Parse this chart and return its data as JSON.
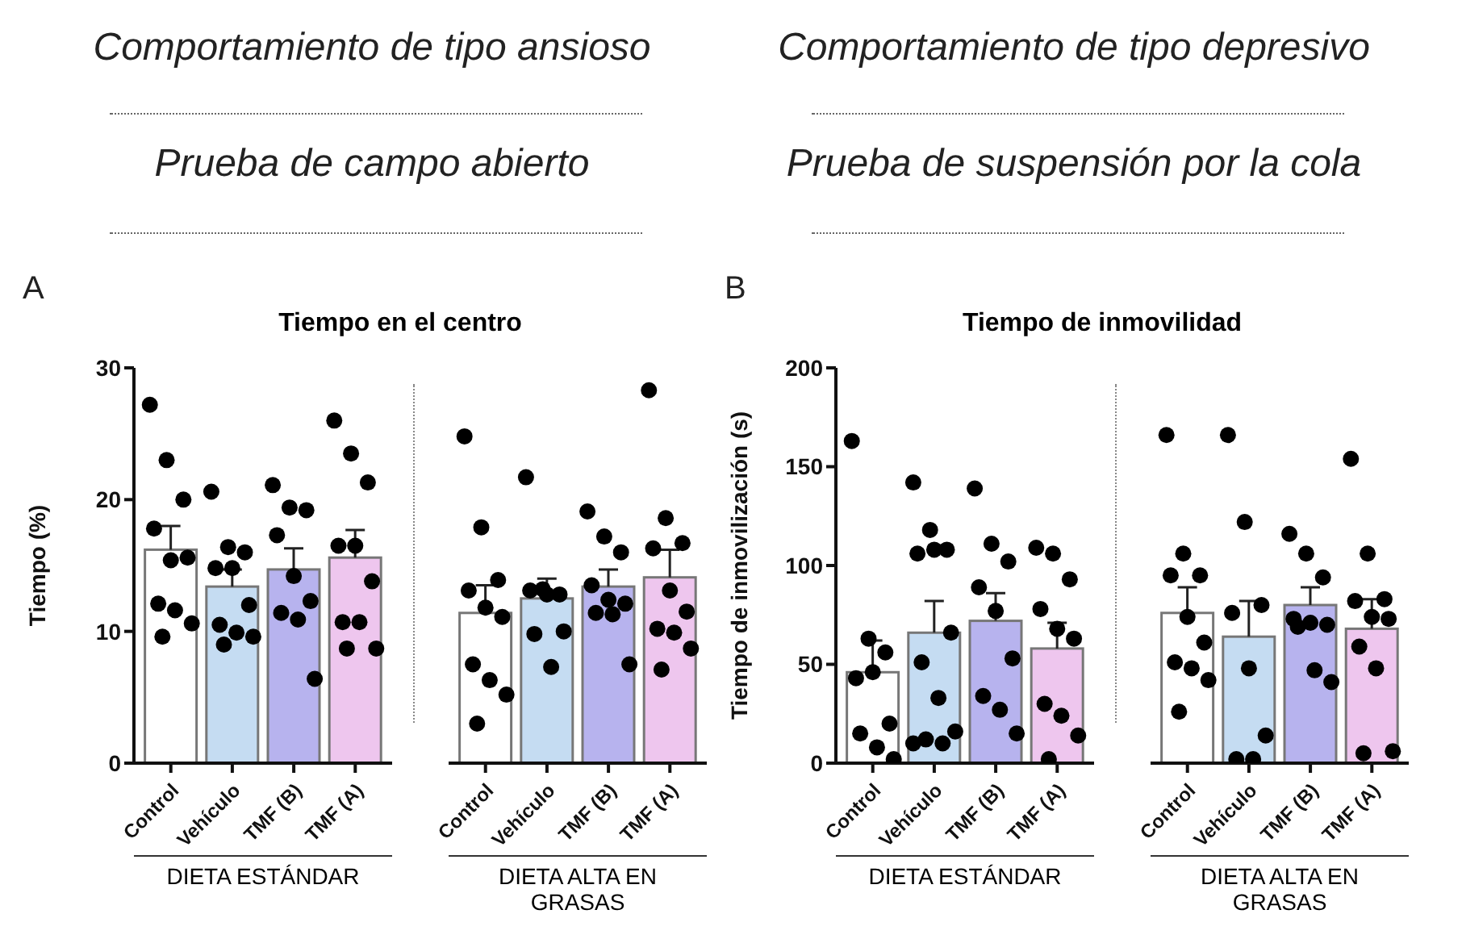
{
  "chart_data": [
    {
      "type": "bar",
      "title": "Tiempo en el centro",
      "ylabel": "Tiempo (%)",
      "xlabel": "DIETA ESTÁNDAR",
      "categories": [
        "Control",
        "Vehículo",
        "TMF (B)",
        "TMF (A)"
      ],
      "ylim": [
        0,
        30
      ],
      "yticks": [
        0,
        10,
        20,
        30
      ],
      "annotations": [
        "Comportamiento de tipo ansioso",
        "Prueba de campo abierto",
        "A"
      ],
      "series": [
        {
          "values": [
            16.2,
            13.4,
            14.7,
            15.6
          ],
          "colors": [
            "#ffffff",
            "#c5dcf2",
            "#b7b3ee",
            "#eec6ee"
          ],
          "errors": [
            [
              16.2,
              18.0
            ],
            [
              13.4,
              14.7
            ],
            [
              14.7,
              16.3
            ],
            [
              15.6,
              17.7
            ]
          ]
        },
        {
          "type": "scatter",
          "color": "#000000",
          "marker": "circle",
          "x": [
            "Control",
            "Control",
            "Control",
            "Control",
            "Control",
            "Control",
            "Control",
            "Control",
            "Control",
            "Control",
            "Vehículo",
            "Vehículo",
            "Vehículo",
            "Vehículo",
            "Vehículo",
            "Vehículo",
            "Vehículo",
            "Vehículo",
            "Vehículo",
            "Vehículo",
            "TMF (B)",
            "TMF (B)",
            "TMF (B)",
            "TMF (B)",
            "TMF (B)",
            "TMF (B)",
            "TMF (B)",
            "TMF (B)",
            "TMF (B)",
            "TMF (A)",
            "TMF (A)",
            "TMF (A)",
            "TMF (A)",
            "TMF (A)",
            "TMF (A)",
            "TMF (A)",
            "TMF (A)",
            "TMF (A)",
            "TMF (A)"
          ],
          "values": [
            27.2,
            23.0,
            20.0,
            17.8,
            15.4,
            15.6,
            12.1,
            11.6,
            10.6,
            9.6,
            20.6,
            16.4,
            16.0,
            14.8,
            14.8,
            12.0,
            10.5,
            9.9,
            9.6,
            9.0,
            21.1,
            19.4,
            19.2,
            17.3,
            14.2,
            12.3,
            11.4,
            10.9,
            6.4,
            26.0,
            23.5,
            21.3,
            16.5,
            16.5,
            13.8,
            10.7,
            10.7,
            8.7,
            8.7
          ]
        }
      ]
    },
    {
      "type": "bar",
      "xlabel": "DIETA ALTA EN GRASAS",
      "categories": [
        "Control",
        "Vehículo",
        "TMF (B)",
        "TMF (A)"
      ],
      "ylim": [
        0,
        30
      ],
      "tick_labels": "x",
      "series": [
        {
          "values": [
            11.4,
            12.5,
            13.4,
            14.1
          ],
          "colors": [
            "#ffffff",
            "#c5dcf2",
            "#b7b3ee",
            "#eec6ee"
          ],
          "errors": [
            [
              11.4,
              13.5
            ],
            [
              12.5,
              14.0
            ],
            [
              13.4,
              14.7
            ],
            [
              14.1,
              16.2
            ]
          ]
        },
        {
          "type": "scatter",
          "color": "#000000",
          "marker": "circle",
          "x": [
            "Control",
            "Control",
            "Control",
            "Control",
            "Control",
            "Control",
            "Control",
            "Control",
            "Control",
            "Control",
            "Vehículo",
            "Vehículo",
            "Vehículo",
            "Vehículo",
            "Vehículo",
            "Vehículo",
            "Vehículo",
            "Vehículo",
            "TMF (B)",
            "TMF (B)",
            "TMF (B)",
            "TMF (B)",
            "TMF (B)",
            "TMF (B)",
            "TMF (B)",
            "TMF (B)",
            "TMF (B)",
            "TMF (A)",
            "TMF (A)",
            "TMF (A)",
            "TMF (A)",
            "TMF (A)",
            "TMF (A)",
            "TMF (A)",
            "TMF (A)",
            "TMF (A)",
            "TMF (A)"
          ],
          "values": [
            24.8,
            17.9,
            13.9,
            13.1,
            11.8,
            11.1,
            7.5,
            6.3,
            5.2,
            3.0,
            21.7,
            13.2,
            12.8,
            13.1,
            12.8,
            10.0,
            9.8,
            7.3,
            19.1,
            17.2,
            16.0,
            13.5,
            12.4,
            12.1,
            11.4,
            11.3,
            7.5,
            28.3,
            18.6,
            16.7,
            16.3,
            13.1,
            11.5,
            10.2,
            9.9,
            8.7,
            7.1
          ]
        }
      ]
    },
    {
      "type": "bar",
      "title": "Tiempo de inmovilidad",
      "ylabel": "Tiempo de inmovilización (s)",
      "xlabel": "DIETA ESTÁNDAR",
      "categories": [
        "Control",
        "Vehículo",
        "TMF (B)",
        "TMF (A)"
      ],
      "ylim": [
        0,
        200
      ],
      "yticks": [
        0,
        50,
        100,
        150,
        200
      ],
      "annotations": [
        "Comportamiento de tipo depresivo",
        "Prueba de suspensión por la cola",
        "B"
      ],
      "series": [
        {
          "values": [
            46,
            66,
            72,
            58
          ],
          "colors": [
            "#ffffff",
            "#c5dcf2",
            "#b7b3ee",
            "#eec6ee"
          ],
          "errors": [
            [
              46,
              62
            ],
            [
              66,
              82
            ],
            [
              72,
              86
            ],
            [
              58,
              71
            ]
          ]
        },
        {
          "type": "scatter",
          "color": "#000000",
          "marker": "circle",
          "x": [
            "Control",
            "Control",
            "Control",
            "Control",
            "Control",
            "Control",
            "Control",
            "Control",
            "Control",
            "Vehículo",
            "Vehículo",
            "Vehículo",
            "Vehículo",
            "Vehículo",
            "Vehículo",
            "Vehículo",
            "Vehículo",
            "Vehículo",
            "Vehículo",
            "Vehículo",
            "Vehículo",
            "TMF (B)",
            "TMF (B)",
            "TMF (B)",
            "TMF (B)",
            "TMF (B)",
            "TMF (B)",
            "TMF (B)",
            "TMF (B)",
            "TMF (B)",
            "TMF (A)",
            "TMF (A)",
            "TMF (A)",
            "TMF (A)",
            "TMF (A)",
            "TMF (A)",
            "TMF (A)",
            "TMF (A)",
            "TMF (A)",
            "TMF (A)"
          ],
          "values": [
            163,
            63,
            56,
            43,
            46,
            20,
            15,
            8,
            2,
            142,
            118,
            108,
            106,
            108,
            66,
            51,
            33,
            16,
            12,
            10,
            10,
            139,
            111,
            102,
            89,
            77,
            53,
            34,
            27,
            15,
            109,
            106,
            93,
            78,
            68,
            63,
            30,
            24,
            14,
            2
          ]
        }
      ]
    },
    {
      "type": "bar",
      "xlabel": "DIETA ALTA EN GRASAS",
      "categories": [
        "Control",
        "Vehículo",
        "TMF (B)",
        "TMF (A)"
      ],
      "ylim": [
        0,
        200
      ],
      "tick_labels": "x",
      "series": [
        {
          "values": [
            76,
            64,
            80,
            68
          ],
          "colors": [
            "#ffffff",
            "#c5dcf2",
            "#b7b3ee",
            "#eec6ee"
          ],
          "errors": [
            [
              76,
              89
            ],
            [
              64,
              82
            ],
            [
              80,
              89
            ],
            [
              68,
              83
            ]
          ]
        },
        {
          "type": "scatter",
          "color": "#000000",
          "marker": "circle",
          "x": [
            "Control",
            "Control",
            "Control",
            "Control",
            "Control",
            "Control",
            "Control",
            "Control",
            "Control",
            "Control",
            "Vehículo",
            "Vehículo",
            "Vehículo",
            "Vehículo",
            "Vehículo",
            "Vehículo",
            "Vehículo",
            "Vehículo",
            "TMF (B)",
            "TMF (B)",
            "TMF (B)",
            "TMF (B)",
            "TMF (B)",
            "TMF (B)",
            "TMF (B)",
            "TMF (B)",
            "TMF (B)",
            "TMF (A)",
            "TMF (A)",
            "TMF (A)",
            "TMF (A)",
            "TMF (A)",
            "TMF (A)",
            "TMF (A)",
            "TMF (A)",
            "TMF (A)",
            "TMF (A)"
          ],
          "values": [
            166,
            106,
            95,
            95,
            74,
            61,
            51,
            48,
            42,
            26,
            166,
            122,
            80,
            76,
            48,
            14,
            2,
            2,
            116,
            106,
            94,
            73,
            71,
            70,
            69,
            47,
            41,
            154,
            106,
            83,
            82,
            74,
            73,
            59,
            48,
            6,
            5
          ]
        }
      ]
    }
  ]
}
